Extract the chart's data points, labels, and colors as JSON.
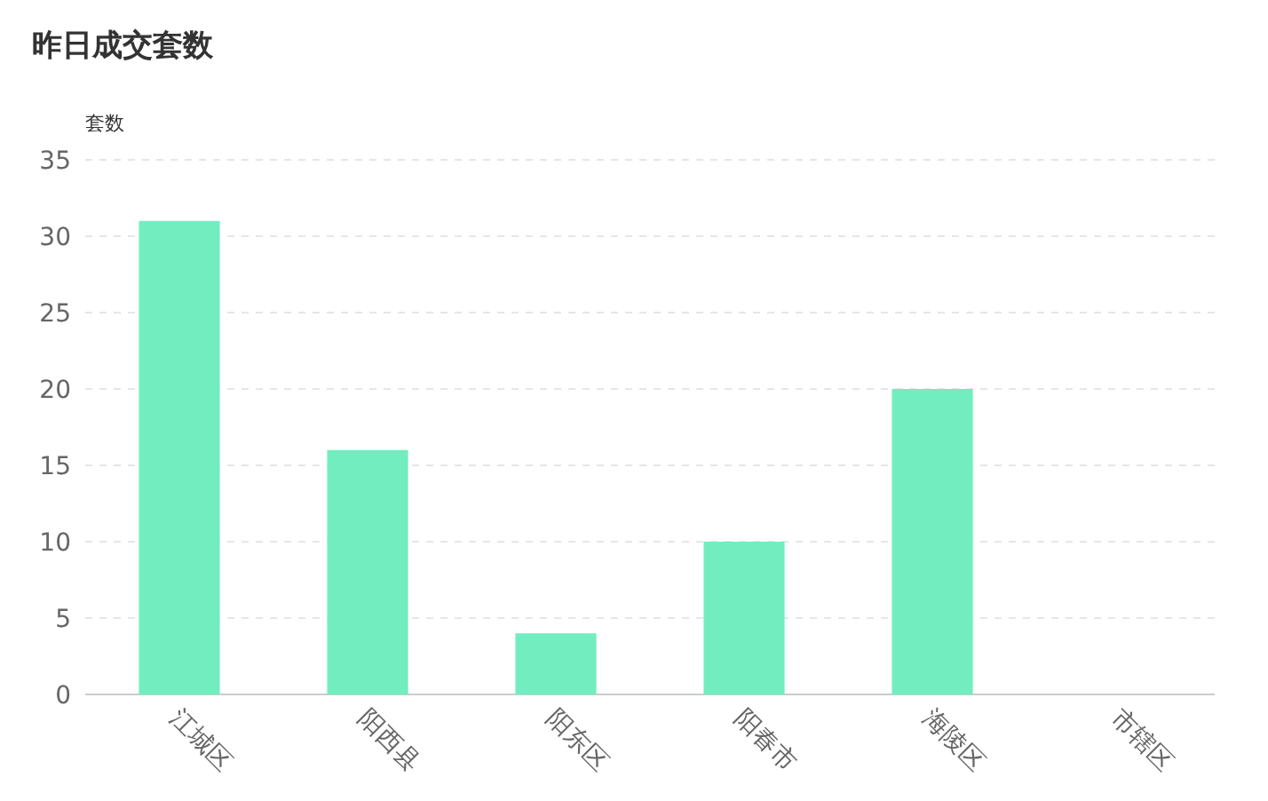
{
  "chart_data": {
    "type": "bar",
    "title": "昨日成交套数",
    "ylabel": "套数",
    "categories": [
      "江城区",
      "阳西县",
      "阳东区",
      "阳春市",
      "海陵区",
      "市辖区"
    ],
    "values": [
      31,
      16,
      4,
      10,
      20,
      0
    ],
    "color": "#72edc0",
    "ylim": [
      0,
      35
    ],
    "yticks": [
      0,
      5,
      10,
      15,
      20,
      25,
      30,
      35
    ],
    "grid": "y"
  }
}
